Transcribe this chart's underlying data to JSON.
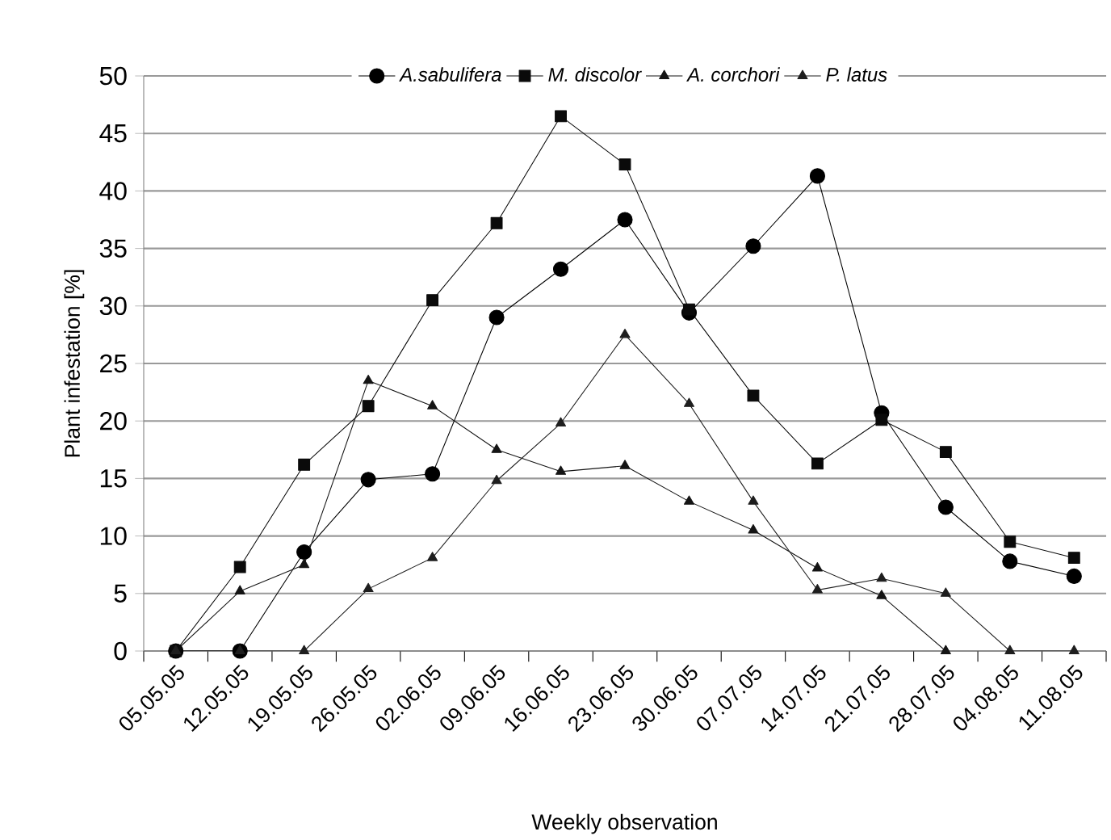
{
  "chart_data": {
    "type": "line",
    "xlabel": "Weekly observation",
    "ylabel": "Plant infestation [%]",
    "categories": [
      "05.05.05",
      "12.05.05",
      "19.05.05",
      "26.05.05",
      "02.06.05",
      "09.06.05",
      "16.06.05",
      "23.06.05",
      "30.06.05",
      "07.07.05",
      "14.07.05",
      "21.07.05",
      "28.07.05",
      "04.08.05",
      "11.08.05"
    ],
    "series": [
      {
        "name": "A.sabulifera",
        "color": "#000000",
        "marker": "circle",
        "values": [
          0,
          0,
          8.6,
          14.9,
          15.4,
          29.0,
          33.2,
          37.5,
          29.4,
          35.2,
          41.3,
          20.7,
          12.5,
          7.8,
          6.5
        ]
      },
      {
        "name": "M. discolor",
        "color": "#0a0a0a",
        "marker": "square",
        "values": [
          0,
          7.3,
          16.2,
          21.3,
          30.5,
          37.2,
          46.5,
          42.3,
          29.7,
          22.2,
          16.3,
          20.1,
          17.3,
          9.5,
          8.1
        ]
      },
      {
        "name": "A. corchori",
        "color": "#141414",
        "marker": "triangle",
        "values": [
          0,
          5.2,
          7.5,
          23.5,
          21.3,
          17.5,
          15.6,
          16.1,
          13.0,
          10.5,
          7.2,
          4.8,
          0,
          null,
          null
        ]
      },
      {
        "name": "P. latus",
        "color": "#1e1e1e",
        "marker": "triangle",
        "values": [
          0,
          0,
          0,
          5.4,
          8.1,
          14.8,
          19.8,
          27.5,
          21.5,
          13.0,
          5.3,
          6.3,
          5.0,
          0,
          0
        ]
      }
    ],
    "ylim": [
      0,
      50
    ],
    "yticks": [
      0,
      5,
      10,
      15,
      20,
      25,
      30,
      35,
      40,
      45,
      50
    ],
    "grid": "y",
    "legend": "top",
    "line_style": "solid"
  }
}
